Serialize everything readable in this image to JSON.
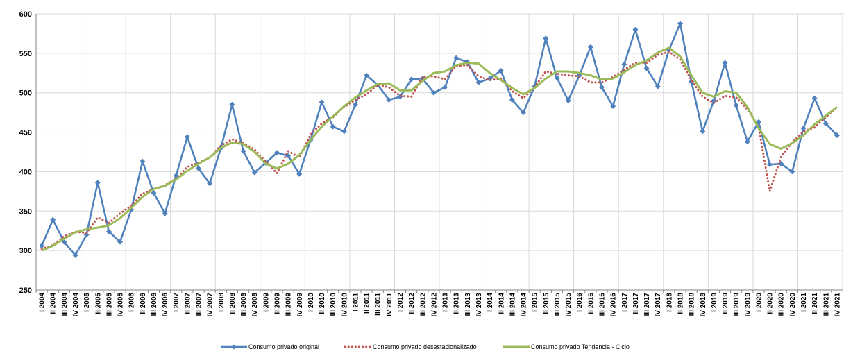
{
  "chart_data": {
    "type": "line",
    "ylim": [
      250,
      600
    ],
    "yticks": [
      250,
      300,
      350,
      400,
      450,
      500,
      550,
      600
    ],
    "grid": true,
    "legend_position": "bottom",
    "categories": [
      "I 2004",
      "II 2004",
      "III 2004",
      "IV 2004",
      "I 2005",
      "II 2005",
      "III 2005",
      "IV 2005",
      "I 2006",
      "II 2006",
      "III 2006",
      "IV 2006",
      "I 2007",
      "II 2007",
      "III 2007",
      "IV 2007",
      "I 2008",
      "II 2008",
      "III 2008",
      "IV 2008",
      "I 2009",
      "II 2009",
      "III 2009",
      "IV 2009",
      "I 2010",
      "II 2010",
      "III 2010",
      "IV 2010",
      "I 2011",
      "II 2011",
      "III 2011",
      "IV 2011",
      "I 2012",
      "II 2012",
      "III 2012",
      "IV 2012",
      "I 2013",
      "II 2013",
      "III 2013",
      "IV 2013",
      "I 2014",
      "II 2014",
      "III 2014",
      "IV 2014",
      "I 2015",
      "II 2015",
      "III 2015",
      "IV 2015",
      "I 2016",
      "II 2016",
      "III 2016",
      "IV 2016",
      "I 2017",
      "II 2017",
      "III 2017",
      "IV 2017",
      "I 2018",
      "II 2018",
      "III 2018",
      "IV 2018",
      "I 2019",
      "II 2019",
      "III 2019",
      "IV 2019",
      "I 2020",
      "II 2020",
      "III 2020",
      "IV 2020",
      "I 2021",
      "II 2021",
      "III 2021",
      "IV 2021"
    ],
    "series": [
      {
        "name": "Consumo privado original",
        "color": "#4f81bd",
        "style": "solid-diamond",
        "values": [
          306,
          339,
          311,
          294,
          320,
          386,
          324,
          311,
          352,
          413,
          373,
          347,
          395,
          444,
          404,
          385,
          430,
          485,
          426,
          399,
          411,
          424,
          420,
          397,
          440,
          488,
          457,
          451,
          485,
          522,
          510,
          491,
          495,
          517,
          518,
          500,
          507,
          544,
          539,
          513,
          518,
          528,
          491,
          475,
          508,
          569,
          519,
          490,
          522,
          558,
          507,
          483,
          536,
          580,
          531,
          508,
          554,
          588,
          514,
          451,
          490,
          538,
          484,
          438,
          463,
          409,
          410,
          400,
          455,
          493,
          461,
          446
        ]
      },
      {
        "name": "Consumo privado desestacionalizado",
        "color": "#c0504d",
        "style": "dotted",
        "values": [
          302,
          307,
          318,
          324,
          322,
          342,
          335,
          347,
          357,
          372,
          378,
          383,
          391,
          406,
          411,
          418,
          433,
          441,
          436,
          428,
          413,
          398,
          426,
          418,
          447,
          461,
          469,
          482,
          491,
          498,
          510,
          507,
          496,
          495,
          520,
          521,
          517,
          534,
          535,
          521,
          516,
          518,
          502,
          493,
          507,
          527,
          524,
          522,
          521,
          513,
          513,
          520,
          529,
          538,
          538,
          548,
          552,
          542,
          516,
          495,
          487,
          496,
          494,
          479,
          457,
          375,
          419,
          437,
          451,
          456,
          469,
          482
        ]
      },
      {
        "name": "Consumo privado Tendencia - Ciclo",
        "color": "#9bbb59",
        "style": "solid",
        "values": [
          300,
          306,
          315,
          323,
          327,
          329,
          332,
          341,
          354,
          368,
          378,
          382,
          390,
          401,
          410,
          418,
          430,
          437,
          435,
          425,
          410,
          404,
          410,
          421,
          440,
          457,
          470,
          483,
          494,
          503,
          511,
          512,
          503,
          503,
          515,
          525,
          527,
          535,
          538,
          537,
          525,
          516,
          506,
          498,
          506,
          518,
          527,
          527,
          525,
          522,
          517,
          518,
          526,
          535,
          541,
          551,
          557,
          546,
          522,
          500,
          495,
          502,
          500,
          482,
          455,
          435,
          429,
          436,
          446,
          460,
          471,
          482
        ]
      }
    ]
  }
}
